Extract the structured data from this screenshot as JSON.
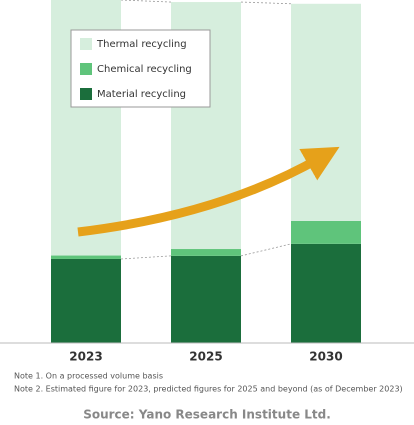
{
  "chart_data": {
    "type": "stacked_bar",
    "categories": [
      "2023",
      "2025",
      "2030"
    ],
    "series": [
      {
        "name": "Material recycling",
        "color": "#1b6e3c",
        "values": [
          24.5,
          25.4,
          28.9
        ]
      },
      {
        "name": "Chemical recycling",
        "color": "#5fc47b",
        "values": [
          1,
          2,
          6.7
        ]
      },
      {
        "name": "Thermal recycling",
        "color": "#d6eedd",
        "values": [
          74.5,
          72,
          63.3
        ]
      }
    ],
    "ylim": [
      0,
      100
    ],
    "legend": "upper left",
    "notes": [
      "Note 1. On a processed volume basis",
      "Note 2. Estimated figure for 2023, predicted figures for 2025 and beyond (as of December 2023)"
    ],
    "source": "Source: Yano Research Institute Ltd."
  }
}
